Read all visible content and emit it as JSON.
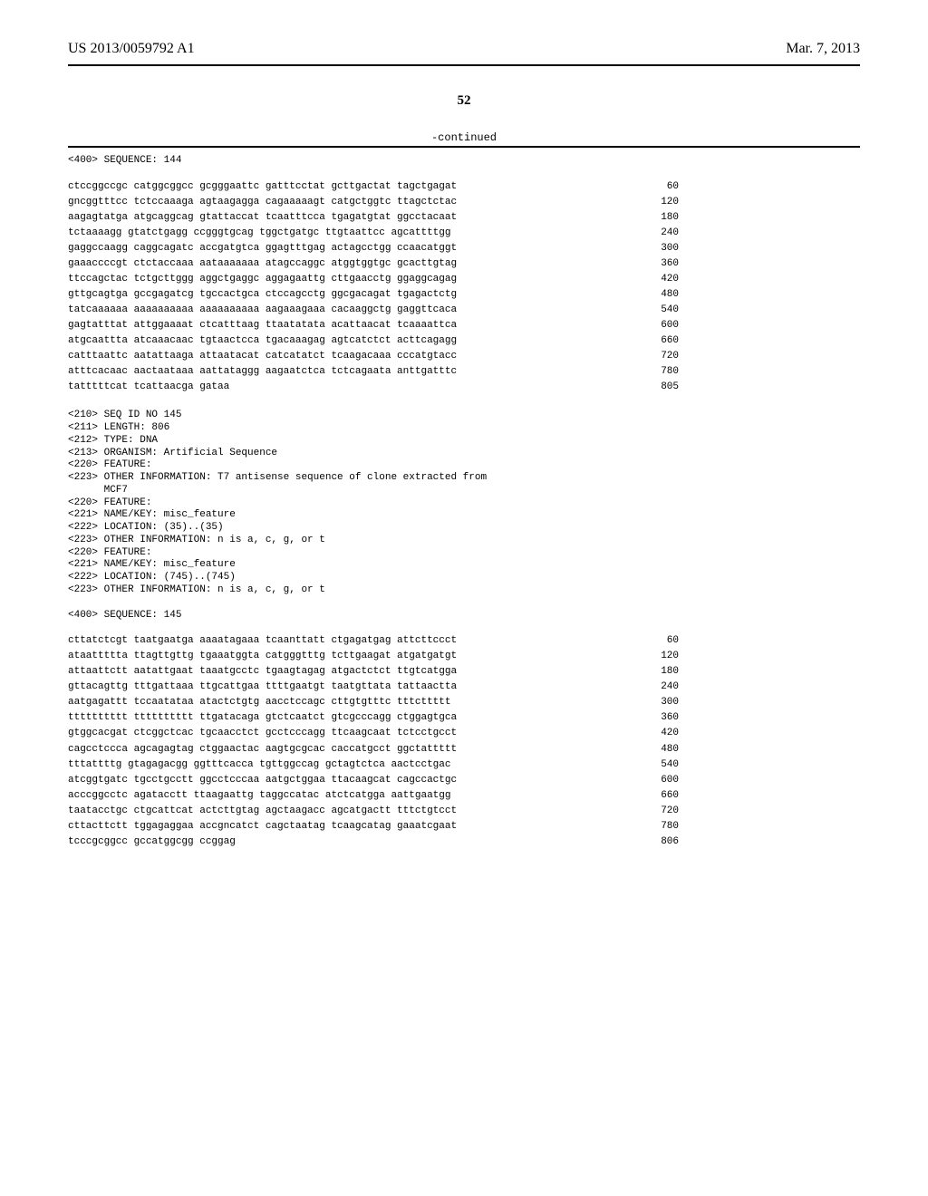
{
  "header": {
    "publication_number": "US 2013/0059792 A1",
    "publication_date": "Mar. 7, 2013"
  },
  "page_number": "52",
  "continued_label": "-continued",
  "seq_144": {
    "header": "<400> SEQUENCE: 144",
    "lines": [
      {
        "seq": "ctccggccgc catggcggcc gcgggaattc gatttcctat gcttgactat tagctgagat",
        "pos": "60"
      },
      {
        "seq": "gncggtttcc tctccaaaga agtaagagga cagaaaaagt catgctggtc ttagctctac",
        "pos": "120"
      },
      {
        "seq": "aagagtatga atgcaggcag gtattaccat tcaatttcca tgagatgtat ggcctacaat",
        "pos": "180"
      },
      {
        "seq": "tctaaaagg gtatctgagg ccgggtgcag tggctgatgc ttgtaattcc agcattttgg",
        "pos": "240"
      },
      {
        "seq": "gaggccaagg caggcagatc accgatgtca ggagtttgag actagcctgg ccaacatggt",
        "pos": "300"
      },
      {
        "seq": "gaaaccccgt ctctaccaaa aataaaaaaa atagccaggc atggtggtgc gcacttgtag",
        "pos": "360"
      },
      {
        "seq": "ttccagctac tctgcttggg aggctgaggc aggagaattg cttgaacctg ggaggcagag",
        "pos": "420"
      },
      {
        "seq": "gttgcagtga gccgagatcg tgccactgca ctccagcctg ggcgacagat tgagactctg",
        "pos": "480"
      },
      {
        "seq": "tatcaaaaaa aaaaaaaaaa aaaaaaaaaa aagaaagaaa cacaaggctg gaggttcaca",
        "pos": "540"
      },
      {
        "seq": "gagtatttat attggaaaat ctcatttaag ttaatatata acattaacat tcaaaattca",
        "pos": "600"
      },
      {
        "seq": "atgcaattta atcaaacaac tgtaactcca tgacaaagag agtcatctct acttcagagg",
        "pos": "660"
      },
      {
        "seq": "catttaattc aatattaaga attaatacat catcatatct tcaagacaaa cccatgtacc",
        "pos": "720"
      },
      {
        "seq": "atttcacaac aactaataaa aattataggg aagaatctca tctcagaata anttgatttc",
        "pos": "780"
      },
      {
        "seq": "tatttttcat tcattaacga gataa",
        "pos": "805"
      }
    ]
  },
  "seq_145_meta": [
    "<210> SEQ ID NO 145",
    "<211> LENGTH: 806",
    "<212> TYPE: DNA",
    "<213> ORGANISM: Artificial Sequence",
    "<220> FEATURE:",
    "<223> OTHER INFORMATION: T7 antisense sequence of clone extracted from",
    "      MCF7",
    "<220> FEATURE:",
    "<221> NAME/KEY: misc_feature",
    "<222> LOCATION: (35)..(35)",
    "<223> OTHER INFORMATION: n is a, c, g, or t",
    "<220> FEATURE:",
    "<221> NAME/KEY: misc_feature",
    "<222> LOCATION: (745)..(745)",
    "<223> OTHER INFORMATION: n is a, c, g, or t"
  ],
  "seq_145": {
    "header": "<400> SEQUENCE: 145",
    "lines": [
      {
        "seq": "cttatctcgt taatgaatga aaaatagaaa tcaanttatt ctgagatgag attcttccct",
        "pos": "60"
      },
      {
        "seq": "ataattttta ttagttgttg tgaaatggta catgggtttg tcttgaagat atgatgatgt",
        "pos": "120"
      },
      {
        "seq": "attaattctt aatattgaat taaatgcctc tgaagtagag atgactctct ttgtcatgga",
        "pos": "180"
      },
      {
        "seq": "gttacagttg tttgattaaa ttgcattgaa ttttgaatgt taatgttata tattaactta",
        "pos": "240"
      },
      {
        "seq": "aatgagattt tccaatataa atactctgtg aacctccagc cttgtgtttc tttcttttt",
        "pos": "300"
      },
      {
        "seq": "tttttttttt tttttttttt ttgatacaga gtctcaatct gtcgcccagg ctggagtgca",
        "pos": "360"
      },
      {
        "seq": "gtggcacgat ctcggctcac tgcaacctct gcctcccagg ttcaagcaat tctcctgcct",
        "pos": "420"
      },
      {
        "seq": "cagcctccca agcagagtag ctggaactac aagtgcgcac caccatgcct ggctattttt",
        "pos": "480"
      },
      {
        "seq": "tttattttg gtagagacgg ggtttcacca tgttggccag gctagtctca aactcctgac",
        "pos": "540"
      },
      {
        "seq": "atcggtgatc tgcctgcctt ggcctcccaa aatgctggaa ttacaagcat cagccactgc",
        "pos": "600"
      },
      {
        "seq": "acccggcctc agatacctt ttaagaattg taggccatac atctcatgga aattgaatgg",
        "pos": "660"
      },
      {
        "seq": "taatacctgc ctgcattcat actcttgtag agctaagacc agcatgactt tttctgtcct",
        "pos": "720"
      },
      {
        "seq": "cttacttctt tggagaggaa accgncatct cagctaatag tcaagcatag gaaatcgaat",
        "pos": "780"
      },
      {
        "seq": "tcccgcggcc gccatggcgg ccggag",
        "pos": "806"
      }
    ]
  }
}
